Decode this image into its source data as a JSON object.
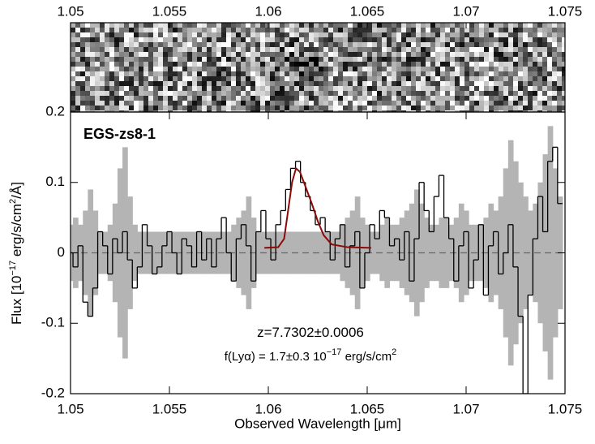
{
  "chart_data": {
    "type": "line",
    "title": "EGS-zs8-1",
    "x_label": "Observed Wavelength [μm]",
    "y_label": [
      {
        "text": "Flux [10"
      },
      {
        "text": "−17",
        "sup": true
      },
      {
        "text": " erg/s/cm"
      },
      {
        "text": "2",
        "sup": true
      },
      {
        "text": "/Å]"
      }
    ],
    "annotations": [
      [
        {
          "text": "z=7.7302±0.0006"
        }
      ],
      [
        {
          "text": "f(Lyα) = 1.7±0.3 10"
        },
        {
          "text": "−17",
          "sup": true
        },
        {
          "text": " erg/s/cm"
        },
        {
          "text": "2",
          "sup": true
        }
      ]
    ],
    "xlim": [
      1.05,
      1.075
    ],
    "xticks": [
      1.05,
      1.055,
      1.06,
      1.065,
      1.07,
      1.075
    ],
    "ylim": [
      -0.2,
      0.2
    ],
    "yticks": [
      -0.2,
      -0.1,
      0,
      0.1,
      0.2
    ],
    "x": [
      1.05,
      1.05025,
      1.0505,
      1.05075,
      1.051,
      1.05125,
      1.0515,
      1.05175,
      1.052,
      1.05225,
      1.0525,
      1.05275,
      1.053,
      1.05325,
      1.0535,
      1.05375,
      1.054,
      1.05425,
      1.0545,
      1.05475,
      1.055,
      1.05525,
      1.0555,
      1.05575,
      1.056,
      1.05625,
      1.0565,
      1.05675,
      1.057,
      1.05725,
      1.0575,
      1.05775,
      1.058,
      1.05825,
      1.0585,
      1.05875,
      1.059,
      1.05925,
      1.0595,
      1.05975,
      1.06,
      1.06025,
      1.0605,
      1.06075,
      1.061,
      1.06125,
      1.0615,
      1.06175,
      1.062,
      1.06225,
      1.0625,
      1.06275,
      1.063,
      1.06325,
      1.0635,
      1.06375,
      1.064,
      1.06425,
      1.0645,
      1.06475,
      1.065,
      1.06525,
      1.0655,
      1.06575,
      1.066,
      1.06625,
      1.0665,
      1.06675,
      1.067,
      1.06725,
      1.0675,
      1.06775,
      1.068,
      1.06825,
      1.0685,
      1.06875,
      1.069,
      1.06925,
      1.0695,
      1.06975,
      1.07,
      1.07025,
      1.0705,
      1.07075,
      1.071,
      1.07125,
      1.0715,
      1.07175,
      1.072,
      1.07225,
      1.0725,
      1.07275,
      1.073,
      1.07325,
      1.0735,
      1.07375,
      1.074,
      1.07425,
      1.0745,
      1.07475
    ],
    "series": [
      {
        "color": "#000000",
        "error_color": "#b4b4b4",
        "values": [
          0.0,
          -0.02,
          0.01,
          -0.07,
          -0.09,
          -0.05,
          0.03,
          0.01,
          -0.03,
          0.02,
          0.0,
          0.03,
          -0.01,
          -0.05,
          -0.02,
          0.04,
          0.01,
          -0.03,
          -0.02,
          0.01,
          0.03,
          0.0,
          -0.03,
          0.02,
          0.01,
          -0.02,
          0.03,
          -0.01,
          0.02,
          -0.02,
          0.02,
          0.05,
          0.0,
          -0.04,
          0.02,
          0.04,
          0.01,
          -0.04,
          0.03,
          0.06,
          0.02,
          -0.01,
          0.04,
          0.06,
          0.09,
          0.12,
          0.13,
          0.1,
          0.08,
          0.06,
          0.04,
          0.05,
          0.03,
          -0.01,
          0.02,
          0.04,
          -0.02,
          0.01,
          0.03,
          -0.05,
          0.0,
          0.04,
          0.02,
          0.06,
          0.05,
          0.01,
          0.02,
          -0.01,
          0.03,
          -0.04,
          0.02,
          0.1,
          0.06,
          0.03,
          0.08,
          0.11,
          0.05,
          0.02,
          -0.04,
          0.01,
          0.03,
          -0.05,
          -0.01,
          0.04,
          -0.06,
          0.01,
          0.03,
          -0.03,
          0.0,
          0.04,
          -0.02,
          -0.09,
          -0.2,
          -0.06,
          0.02,
          0.08,
          0.03,
          0.13,
          0.15,
          0.07
        ],
        "errors": [
          0.04,
          0.05,
          0.04,
          0.06,
          0.09,
          0.06,
          0.03,
          0.03,
          0.04,
          0.07,
          0.12,
          0.15,
          0.08,
          0.04,
          0.03,
          0.03,
          0.03,
          0.03,
          0.03,
          0.03,
          0.03,
          0.03,
          0.03,
          0.03,
          0.03,
          0.03,
          0.03,
          0.03,
          0.03,
          0.03,
          0.03,
          0.03,
          0.03,
          0.04,
          0.05,
          0.06,
          0.08,
          0.05,
          0.03,
          0.03,
          0.03,
          0.03,
          0.03,
          0.03,
          0.03,
          0.03,
          0.03,
          0.03,
          0.03,
          0.03,
          0.03,
          0.03,
          0.03,
          0.03,
          0.03,
          0.04,
          0.05,
          0.06,
          0.08,
          0.05,
          0.04,
          0.03,
          0.03,
          0.04,
          0.05,
          0.04,
          0.04,
          0.05,
          0.06,
          0.07,
          0.09,
          0.07,
          0.05,
          0.04,
          0.04,
          0.05,
          0.05,
          0.04,
          0.05,
          0.07,
          0.06,
          0.04,
          0.04,
          0.04,
          0.05,
          0.07,
          0.06,
          0.08,
          0.12,
          0.16,
          0.13,
          0.1,
          0.08,
          0.06,
          0.07,
          0.1,
          0.14,
          0.18,
          0.12,
          0.08
        ]
      }
    ],
    "fit": {
      "color": "#8b0a0a",
      "x": [
        1.0598,
        1.0605,
        1.0608,
        1.061,
        1.0612,
        1.0614,
        1.0616,
        1.0618,
        1.062,
        1.0622,
        1.0625,
        1.0628,
        1.0632,
        1.064,
        1.0652
      ],
      "values": [
        0.007,
        0.008,
        0.02,
        0.06,
        0.1,
        0.12,
        0.115,
        0.1,
        0.085,
        0.07,
        0.045,
        0.025,
        0.012,
        0.008,
        0.007
      ]
    }
  }
}
